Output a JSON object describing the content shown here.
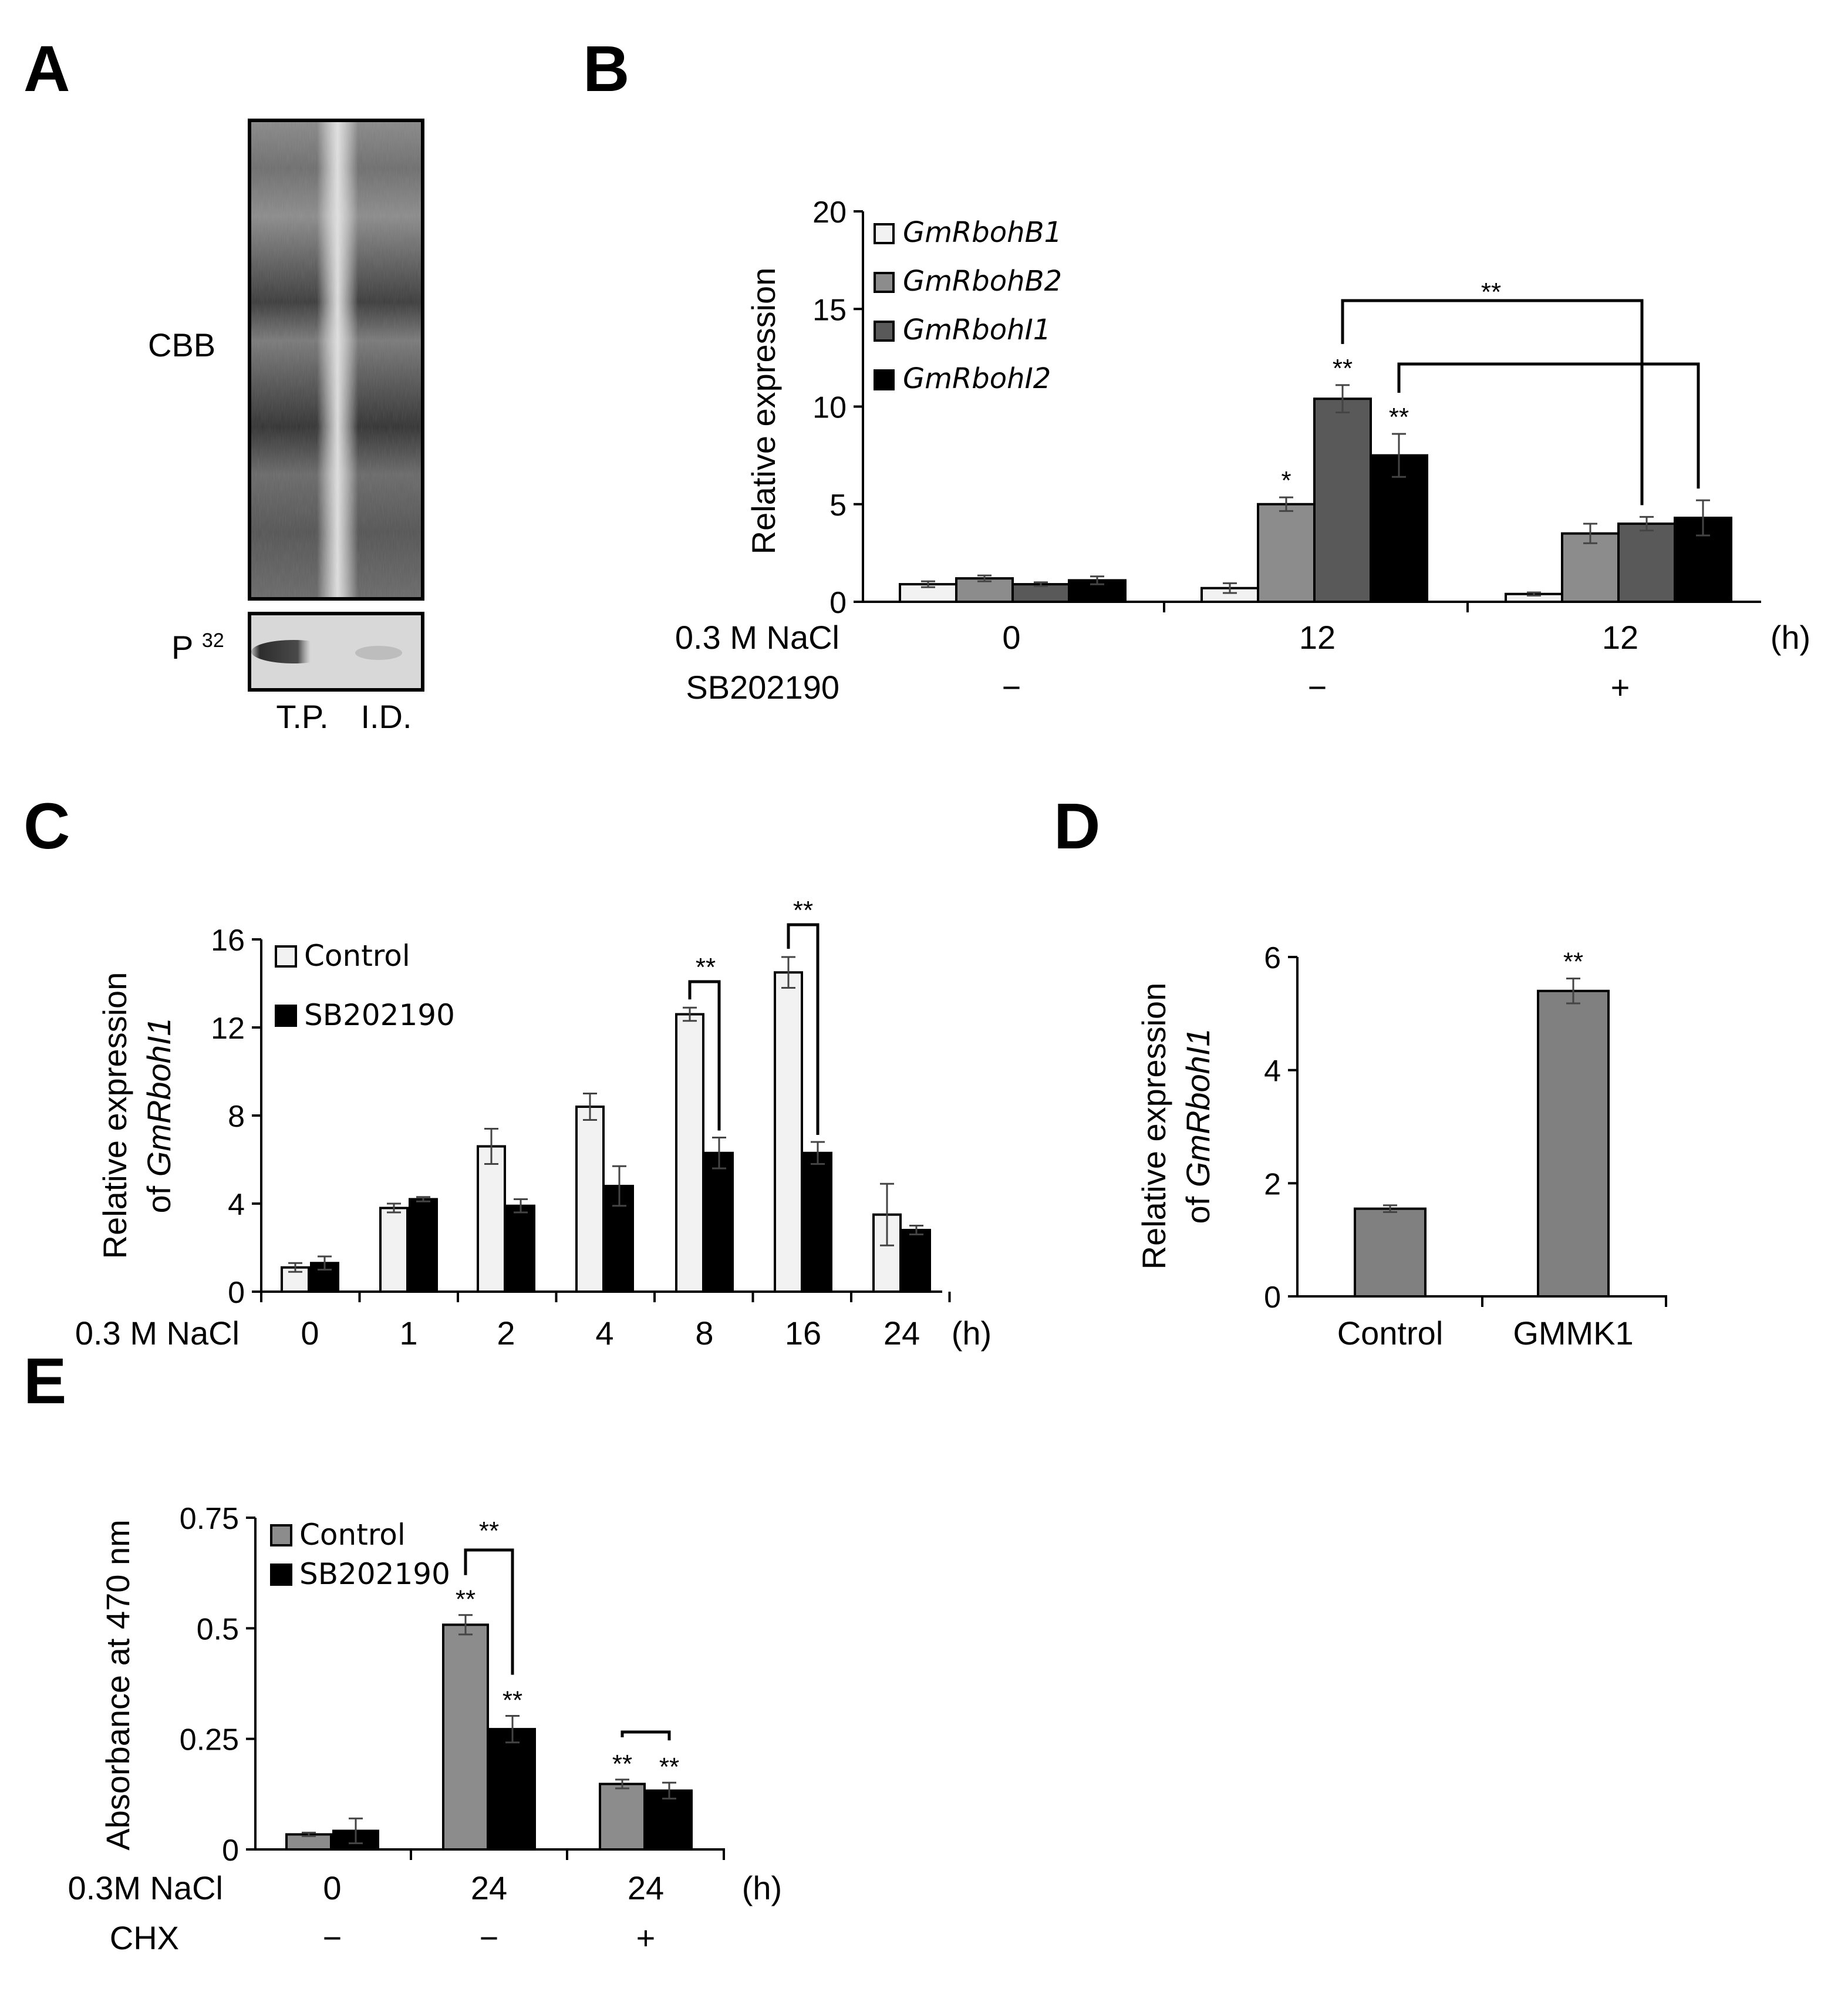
{
  "panel_labels": [
    "A",
    "B",
    "C",
    "D",
    "E"
  ],
  "panel_a": {
    "stain_label": "CBB",
    "radio_label_main": "P",
    "radio_label_sup": "32",
    "lanes": [
      "T.P.",
      "I.D."
    ]
  },
  "colors": {
    "white_bar": "#f2f2f2",
    "light_gray": "#8c8c8c",
    "mid_gray": "#595959",
    "black": "#000000",
    "panel_d_bar": "#808080"
  },
  "chart_data": [
    {
      "id": "B",
      "type": "bar",
      "ylabel": "Relative expression",
      "ylim": [
        0,
        20
      ],
      "yticks": [
        "0",
        "5",
        "10",
        "15",
        "20"
      ],
      "row_labels": [
        "0.3 M NaCl",
        "SB202190"
      ],
      "groups": [
        {
          "time": "0",
          "treat": "−"
        },
        {
          "time": "12",
          "treat": "−"
        },
        {
          "time": "12",
          "treat": "+"
        }
      ],
      "unit": "(h)",
      "legend_position": "top-left",
      "series": [
        {
          "name": "GmRbohB1",
          "values": [
            0.9,
            0.7,
            0.4
          ],
          "err": [
            0.15,
            0.25,
            0.08
          ],
          "sig": [
            "",
            "",
            ""
          ]
        },
        {
          "name": "GmRbohB2",
          "values": [
            1.2,
            5.0,
            3.5
          ],
          "err": [
            0.15,
            0.35,
            0.5
          ],
          "sig": [
            "",
            "*",
            ""
          ]
        },
        {
          "name": "GmRbohI1",
          "values": [
            0.9,
            10.4,
            4.0
          ],
          "err": [
            0.1,
            0.7,
            0.35
          ],
          "sig": [
            "",
            "**",
            ""
          ]
        },
        {
          "name": "GmRbohI2",
          "values": [
            1.1,
            7.5,
            4.3
          ],
          "err": [
            0.2,
            1.1,
            0.9
          ],
          "sig": [
            "",
            "**",
            ""
          ]
        }
      ],
      "comparisons": [
        {
          "label": "**"
        },
        {
          "label": ""
        }
      ]
    },
    {
      "id": "C",
      "type": "bar",
      "ylabel_line1": "Relative expression",
      "ylabel_line2_prefix": "of ",
      "ylabel_gene": "GmRbohI1",
      "ylim": [
        0,
        16
      ],
      "yticks": [
        "0",
        "4",
        "8",
        "12",
        "16"
      ],
      "row_label": "0.3 M NaCl",
      "categories": [
        "0",
        "1",
        "2",
        "4",
        "8",
        "16",
        "24"
      ],
      "unit": "(h)",
      "legend_position": "top-left",
      "series": [
        {
          "name": "Control",
          "values": [
            1.1,
            3.8,
            6.6,
            8.4,
            12.6,
            14.5,
            3.5
          ],
          "err": [
            0.2,
            0.2,
            0.8,
            0.6,
            0.3,
            0.7,
            1.4
          ]
        },
        {
          "name": "SB202190",
          "values": [
            1.3,
            4.2,
            3.9,
            4.8,
            6.3,
            6.3,
            2.8
          ],
          "err": [
            0.3,
            0.1,
            0.3,
            0.9,
            0.7,
            0.5,
            0.2
          ]
        }
      ],
      "comparisons": [
        {
          "label": "**"
        },
        {
          "label": "**"
        }
      ]
    },
    {
      "id": "D",
      "type": "bar",
      "ylabel_line1": "Relative expression",
      "ylabel_line2_prefix": "of ",
      "ylabel_gene": "GmRbohI1",
      "ylim": [
        0,
        6
      ],
      "yticks": [
        "0",
        "2",
        "4",
        "6"
      ],
      "categories": [
        "Control",
        "GMMK1"
      ],
      "values": [
        1.55,
        5.4
      ],
      "err": [
        0.06,
        0.22
      ],
      "sig": [
        "",
        "**"
      ]
    },
    {
      "id": "E",
      "type": "bar",
      "ylabel": "Absorbance at 470 nm",
      "ylim": [
        0,
        0.75
      ],
      "yticks": [
        "0",
        "0.25",
        "0.5",
        "0.75"
      ],
      "row_labels": [
        "0.3M NaCl",
        "CHX"
      ],
      "groups": [
        {
          "time": "0",
          "treat": "−"
        },
        {
          "time": "24",
          "treat": "−"
        },
        {
          "time": "24",
          "treat": "+"
        }
      ],
      "unit": "(h)",
      "legend_position": "top-left",
      "series": [
        {
          "name": "Control",
          "values": [
            0.034,
            0.508,
            0.148
          ],
          "err": [
            0.004,
            0.022,
            0.01
          ],
          "sig": [
            "",
            "**",
            "**"
          ]
        },
        {
          "name": "SB202190",
          "values": [
            0.042,
            0.272,
            0.133
          ],
          "err": [
            0.028,
            0.03,
            0.018
          ],
          "sig": [
            "",
            "**",
            "**"
          ]
        }
      ],
      "comparisons": [
        {
          "label": "**"
        },
        {
          "label": ""
        }
      ]
    }
  ]
}
